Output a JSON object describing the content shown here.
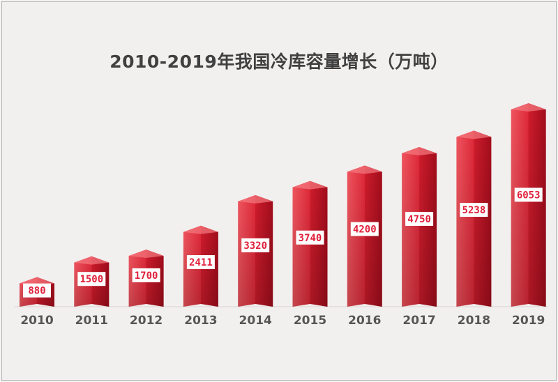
{
  "chart_data": {
    "type": "bar",
    "title": "2010-2019年我国冷库容量增长（万吨）",
    "categories": [
      "2010",
      "2011",
      "2012",
      "2013",
      "2014",
      "2015",
      "2016",
      "2017",
      "2018",
      "2019"
    ],
    "values": [
      880,
      1500,
      1700,
      2411,
      3320,
      3740,
      4200,
      4750,
      5238,
      6053
    ],
    "data_labels": [
      "880",
      "1500",
      "1700",
      "2411",
      "3320",
      "3740",
      "4200",
      "4750",
      "5238",
      "6053"
    ],
    "xlabel": "",
    "ylabel": "",
    "ylim": [
      0,
      6053
    ],
    "grid": false,
    "legend": "none",
    "colors": {
      "bar_light": "#f0565f",
      "bar_mid": "#e0293a",
      "bar_dark": "#a30d1c",
      "label_bg": "#ffffff",
      "label_text": "#e0203a",
      "background": "#f2f0ef"
    }
  }
}
